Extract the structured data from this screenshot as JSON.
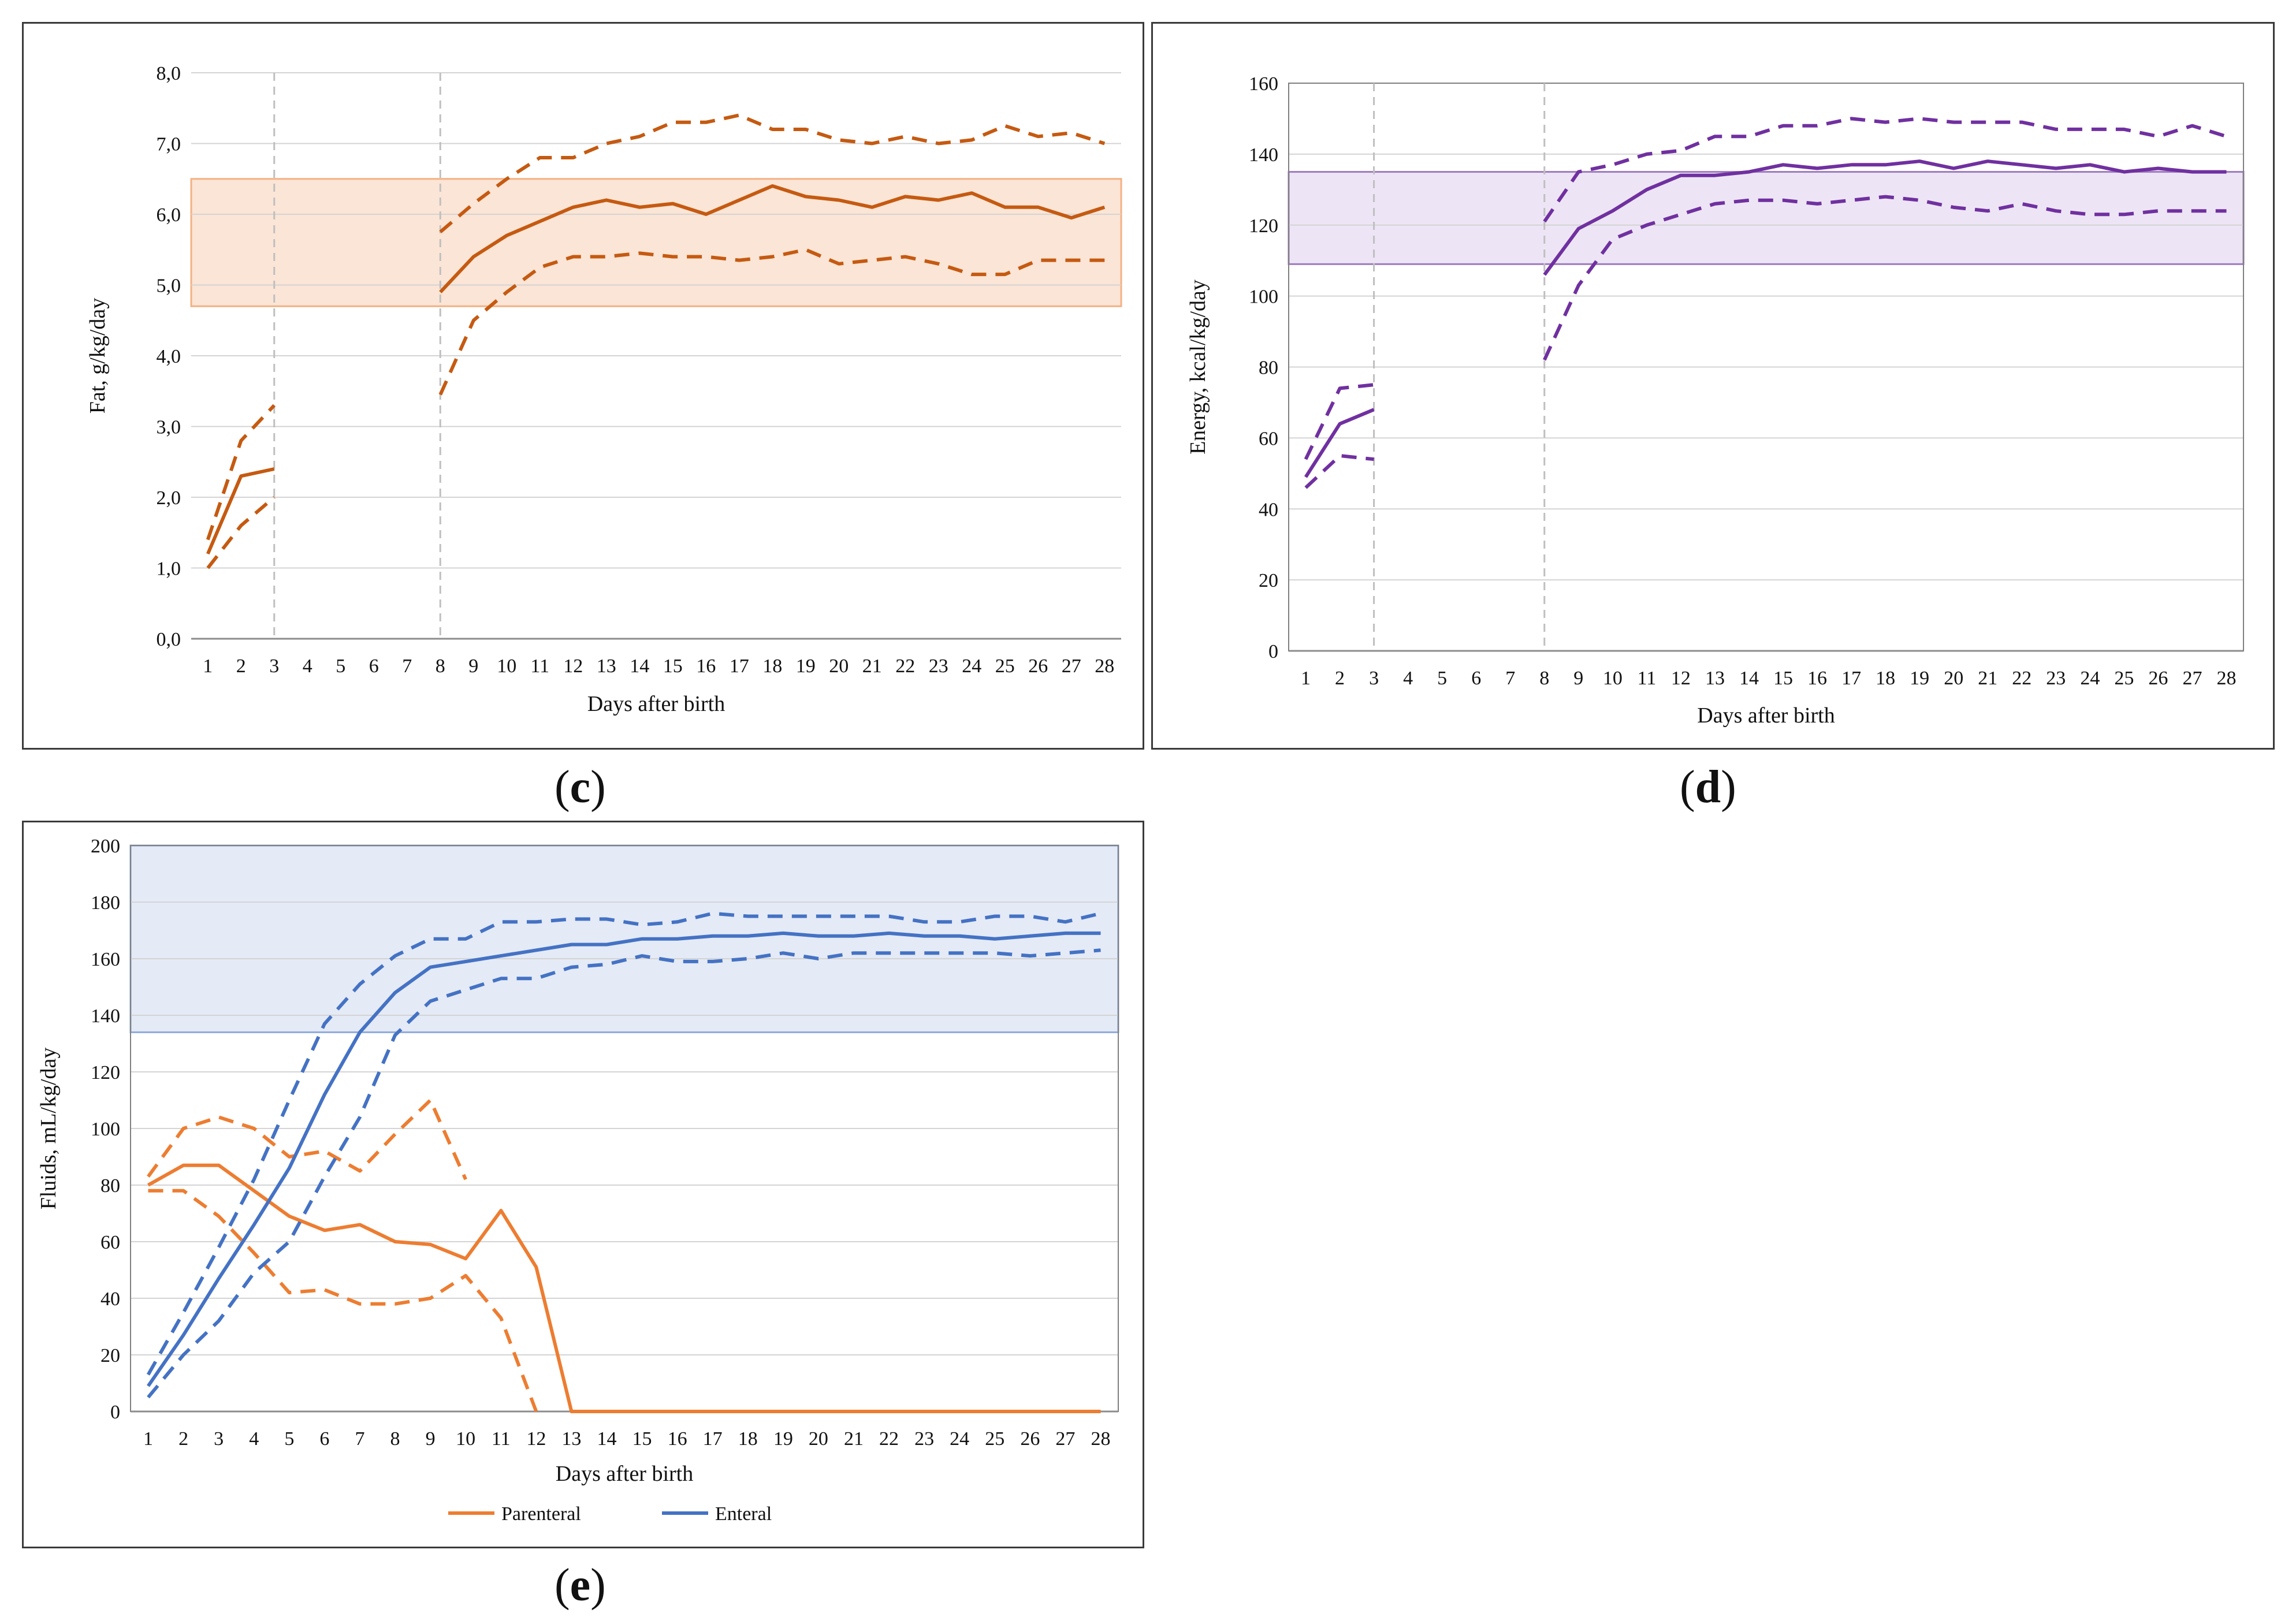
{
  "captions": {
    "c": "c",
    "d": "d",
    "e": "e"
  },
  "chart_data": [
    {
      "id": "c",
      "type": "line",
      "xlabel": "Days after birth",
      "ylabel": "Fat, g/kg/day",
      "x_ticks": [
        "1",
        "2",
        "3",
        "4",
        "5",
        "6",
        "7",
        "8",
        "9",
        "10",
        "11",
        "12",
        "13",
        "14",
        "15",
        "16",
        "17",
        "18",
        "19",
        "20",
        "21",
        "22",
        "23",
        "24",
        "25",
        "26",
        "27",
        "28"
      ],
      "y_ticks": [
        "0,0",
        "1,0",
        "2,0",
        "3,0",
        "4,0",
        "5,0",
        "6,0",
        "7,0",
        "8,0"
      ],
      "ylim": [
        0,
        8
      ],
      "reference_band": [
        4.7,
        6.5
      ],
      "vlines": [
        3,
        8
      ],
      "colors": {
        "line": "#C55A11",
        "band": "#FBE5D6",
        "band_edge": "#F4B183"
      },
      "series": [
        {
          "name": "median",
          "style": "solid",
          "segments": [
            {
              "x": [
                1,
                2,
                3
              ],
              "y": [
                1.2,
                2.3,
                2.4
              ]
            },
            {
              "x": [
                8,
                9,
                10,
                11,
                12,
                13,
                14,
                15,
                16,
                17,
                18,
                19,
                20,
                21,
                22,
                23,
                24,
                25,
                26,
                27,
                28
              ],
              "y": [
                4.9,
                5.4,
                5.7,
                5.9,
                6.1,
                6.2,
                6.1,
                6.15,
                6.0,
                6.2,
                6.4,
                6.25,
                6.2,
                6.1,
                6.25,
                6.2,
                6.3,
                6.1,
                6.1,
                5.95,
                6.1
              ]
            }
          ]
        },
        {
          "name": "upper",
          "style": "dashed",
          "segments": [
            {
              "x": [
                1,
                2,
                3
              ],
              "y": [
                1.4,
                2.8,
                3.3
              ]
            },
            {
              "x": [
                8,
                9,
                10,
                11,
                12,
                13,
                14,
                15,
                16,
                17,
                18,
                19,
                20,
                21,
                22,
                23,
                24,
                25,
                26,
                27,
                28
              ],
              "y": [
                5.75,
                6.15,
                6.5,
                6.8,
                6.8,
                7.0,
                7.1,
                7.3,
                7.3,
                7.4,
                7.2,
                7.2,
                7.05,
                7.0,
                7.1,
                7.0,
                7.05,
                7.25,
                7.1,
                7.15,
                7.0
              ]
            }
          ]
        },
        {
          "name": "lower",
          "style": "dashed",
          "segments": [
            {
              "x": [
                1,
                2,
                3
              ],
              "y": [
                1.0,
                1.6,
                2.0
              ]
            },
            {
              "x": [
                8,
                9,
                10,
                11,
                12,
                13,
                14,
                15,
                16,
                17,
                18,
                19,
                20,
                21,
                22,
                23,
                24,
                25,
                26,
                27,
                28
              ],
              "y": [
                3.45,
                4.5,
                4.9,
                5.25,
                5.4,
                5.4,
                5.45,
                5.4,
                5.4,
                5.35,
                5.4,
                5.5,
                5.3,
                5.35,
                5.4,
                5.3,
                5.15,
                5.15,
                5.35,
                5.35,
                5.35
              ]
            }
          ]
        }
      ]
    },
    {
      "id": "d",
      "type": "line",
      "xlabel": "Days after birth",
      "ylabel": "Energy, kcal/kg/day",
      "x_ticks": [
        "1",
        "2",
        "3",
        "4",
        "5",
        "6",
        "7",
        "8",
        "9",
        "10",
        "11",
        "12",
        "13",
        "14",
        "15",
        "16",
        "17",
        "18",
        "19",
        "20",
        "21",
        "22",
        "23",
        "24",
        "25",
        "26",
        "27",
        "28"
      ],
      "y_ticks": [
        "0",
        "20",
        "40",
        "60",
        "80",
        "100",
        "120",
        "140",
        "160"
      ],
      "ylim": [
        0,
        160
      ],
      "reference_band": [
        109,
        135
      ],
      "vlines": [
        3,
        8
      ],
      "colors": {
        "line": "#7030A0",
        "band": "#EDE5F5",
        "band_edge": "#9E7BBE"
      },
      "series": [
        {
          "name": "median",
          "style": "solid",
          "segments": [
            {
              "x": [
                1,
                2,
                3
              ],
              "y": [
                49,
                64,
                68
              ]
            },
            {
              "x": [
                8,
                9,
                10,
                11,
                12,
                13,
                14,
                15,
                16,
                17,
                18,
                19,
                20,
                21,
                22,
                23,
                24,
                25,
                26,
                27,
                28
              ],
              "y": [
                106,
                119,
                124,
                130,
                134,
                134,
                135,
                137,
                136,
                137,
                137,
                138,
                136,
                138,
                137,
                136,
                137,
                135,
                136,
                135,
                135
              ]
            }
          ]
        },
        {
          "name": "upper",
          "style": "dashed",
          "segments": [
            {
              "x": [
                1,
                2,
                3
              ],
              "y": [
                54,
                74,
                75
              ]
            },
            {
              "x": [
                8,
                9,
                10,
                11,
                12,
                13,
                14,
                15,
                16,
                17,
                18,
                19,
                20,
                21,
                22,
                23,
                24,
                25,
                26,
                27,
                28
              ],
              "y": [
                121,
                135,
                137,
                140,
                141,
                145,
                145,
                148,
                148,
                150,
                149,
                150,
                149,
                149,
                149,
                147,
                147,
                147,
                145,
                148,
                145
              ]
            }
          ]
        },
        {
          "name": "lower",
          "style": "dashed",
          "segments": [
            {
              "x": [
                1,
                2,
                3
              ],
              "y": [
                46,
                55,
                54
              ]
            },
            {
              "x": [
                8,
                9,
                10,
                11,
                12,
                13,
                14,
                15,
                16,
                17,
                18,
                19,
                20,
                21,
                22,
                23,
                24,
                25,
                26,
                27,
                28
              ],
              "y": [
                82,
                103,
                116,
                120,
                123,
                126,
                127,
                127,
                126,
                127,
                128,
                127,
                125,
                124,
                126,
                124,
                123,
                123,
                124,
                124,
                124
              ]
            }
          ]
        }
      ]
    },
    {
      "id": "e",
      "type": "line",
      "xlabel": "Days after birth",
      "ylabel": "Fluids, mL/kg/day",
      "x_ticks": [
        "1",
        "2",
        "3",
        "4",
        "5",
        "6",
        "7",
        "8",
        "9",
        "10",
        "11",
        "12",
        "13",
        "14",
        "15",
        "16",
        "17",
        "18",
        "19",
        "20",
        "21",
        "22",
        "23",
        "24",
        "25",
        "26",
        "27",
        "28"
      ],
      "y_ticks": [
        "0",
        "20",
        "40",
        "60",
        "80",
        "100",
        "120",
        "140",
        "160",
        "180",
        "200"
      ],
      "ylim": [
        0,
        200
      ],
      "reference_band": [
        134,
        200
      ],
      "vlines": [],
      "colors": {
        "parenteral": "#ED7D31",
        "enteral": "#4472C4",
        "band": "#E4EAF6",
        "band_edge": "#8FAADC"
      },
      "legend": [
        {
          "label": "Parenteral",
          "color": "#ED7D31"
        },
        {
          "label": "Enteral",
          "color": "#4472C4"
        }
      ],
      "series": [
        {
          "name": "Parenteral median",
          "group": "parenteral",
          "style": "solid",
          "segments": [
            {
              "x": [
                1,
                2,
                3,
                4,
                5,
                6,
                7,
                8,
                9,
                10,
                11,
                12,
                13,
                14,
                15,
                16,
                17,
                18,
                19,
                20,
                21,
                22,
                23,
                24,
                25,
                26,
                27,
                28
              ],
              "y": [
                80,
                87,
                87,
                78,
                69,
                64,
                66,
                60,
                59,
                54,
                71,
                51,
                0,
                0,
                0,
                0,
                0,
                0,
                0,
                0,
                0,
                0,
                0,
                0,
                0,
                0,
                0,
                0
              ]
            }
          ]
        },
        {
          "name": "Parenteral upper",
          "group": "parenteral",
          "style": "dashed",
          "segments": [
            {
              "x": [
                1,
                2,
                3,
                4,
                5,
                6,
                7,
                8,
                9,
                10
              ],
              "y": [
                83,
                100,
                104,
                100,
                90,
                92,
                85,
                98,
                110,
                82
              ]
            }
          ]
        },
        {
          "name": "Parenteral lower",
          "group": "parenteral",
          "style": "dashed",
          "segments": [
            {
              "x": [
                1,
                2,
                3,
                4,
                5,
                6,
                7,
                8,
                9,
                10,
                11,
                12
              ],
              "y": [
                78,
                78,
                69,
                56,
                42,
                43,
                38,
                38,
                40,
                48,
                33,
                0
              ]
            }
          ]
        },
        {
          "name": "Enteral median",
          "group": "enteral",
          "style": "solid",
          "segments": [
            {
              "x": [
                1,
                2,
                3,
                4,
                5,
                6,
                7,
                8,
                9,
                10,
                11,
                12,
                13,
                14,
                15,
                16,
                17,
                18,
                19,
                20,
                21,
                22,
                23,
                24,
                25,
                26,
                27,
                28
              ],
              "y": [
                9,
                27,
                47,
                66,
                86,
                112,
                134,
                148,
                157,
                159,
                161,
                163,
                165,
                165,
                167,
                167,
                168,
                168,
                169,
                168,
                168,
                169,
                168,
                168,
                167,
                168,
                169,
                169
              ]
            }
          ]
        },
        {
          "name": "Enteral upper",
          "group": "enteral",
          "style": "dashed",
          "segments": [
            {
              "x": [
                1,
                2,
                3,
                4,
                5,
                6,
                7,
                8,
                9,
                10,
                11,
                12,
                13,
                14,
                15,
                16,
                17,
                18,
                19,
                20,
                21,
                22,
                23,
                24,
                25,
                26,
                27,
                28
              ],
              "y": [
                13,
                35,
                58,
                82,
                110,
                137,
                151,
                161,
                167,
                167,
                173,
                173,
                174,
                174,
                172,
                173,
                176,
                175,
                175,
                175,
                175,
                175,
                173,
                173,
                175,
                175,
                173,
                176
              ]
            }
          ]
        },
        {
          "name": "Enteral lower",
          "group": "enteral",
          "style": "dashed",
          "segments": [
            {
              "x": [
                1,
                2,
                3,
                4,
                5,
                6,
                7,
                8,
                9,
                10,
                11,
                12,
                13,
                14,
                15,
                16,
                17,
                18,
                19,
                20,
                21,
                22,
                23,
                24,
                25,
                26,
                27,
                28
              ],
              "y": [
                5,
                20,
                32,
                49,
                60,
                83,
                104,
                133,
                145,
                149,
                153,
                153,
                157,
                158,
                161,
                159,
                159,
                160,
                162,
                160,
                162,
                162,
                162,
                162,
                162,
                161,
                162,
                163
              ]
            }
          ]
        }
      ]
    }
  ]
}
